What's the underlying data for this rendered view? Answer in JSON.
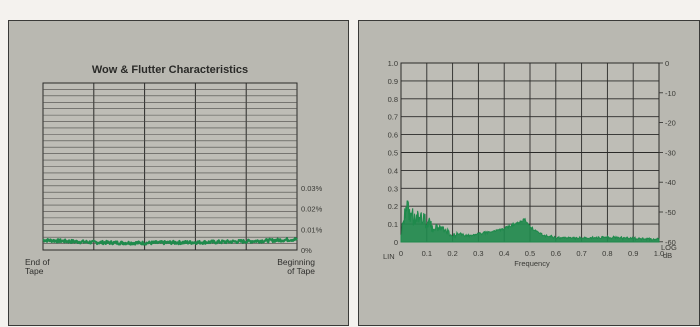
{
  "chart_data": [
    {
      "type": "line",
      "title": "Wow & Flutter Characteristics",
      "x_start_label": [
        "End of",
        "Tape"
      ],
      "x_end_label": [
        "Beginning",
        "of Tape"
      ],
      "y_ticks": [
        "0.03%",
        "0.02%",
        "0.01%",
        "0%"
      ],
      "y_tick_values": [
        0.03,
        0.02,
        0.01,
        0
      ],
      "ylim": [
        0,
        0.03
      ],
      "grid": true,
      "series": [
        {
          "color": "#1f8a4c",
          "x": [
            0,
            0.1,
            0.2,
            0.3,
            0.4,
            0.5,
            0.6,
            0.7,
            0.8,
            0.9,
            1.0
          ],
          "y": [
            0.0048,
            0.0042,
            0.0037,
            0.0035,
            0.0034,
            0.0036,
            0.0037,
            0.0039,
            0.0042,
            0.0046,
            0.0052
          ]
        }
      ]
    },
    {
      "type": "line",
      "xlabel": "Frequency",
      "x_ticks": [
        "0",
        "0.1",
        "0.2",
        "0.3",
        "0.4",
        "0.5",
        "0.6",
        "0.7",
        "0.8",
        "0.9",
        "1.0"
      ],
      "y_ticks_left": [
        "1.0",
        "0.9",
        "0.8",
        "0.7",
        "0.6",
        "0.5",
        "0.4",
        "0.3",
        "0.2",
        "0.1",
        "0"
      ],
      "y_label_left": "LIN",
      "y_ticks_right": [
        "0",
        "-10",
        "-20",
        "-30",
        "-40",
        "-50",
        "-60"
      ],
      "y_label_right": [
        "LOG",
        "dB"
      ],
      "xlim": [
        0,
        1.0
      ],
      "ylim": [
        0,
        1.0
      ],
      "grid": true,
      "series": [
        {
          "color": "#1f8a4c",
          "x": [
            0,
            0.02,
            0.04,
            0.06,
            0.08,
            0.1,
            0.12,
            0.15,
            0.2,
            0.25,
            0.3,
            0.35,
            0.4,
            0.45,
            0.48,
            0.5,
            0.55,
            0.6,
            0.7,
            0.8,
            0.9,
            1.0
          ],
          "y": [
            0.06,
            0.25,
            0.22,
            0.18,
            0.2,
            0.15,
            0.12,
            0.1,
            0.06,
            0.04,
            0.05,
            0.06,
            0.08,
            0.11,
            0.13,
            0.09,
            0.04,
            0.03,
            0.025,
            0.03,
            0.025,
            0.02
          ]
        }
      ]
    }
  ]
}
